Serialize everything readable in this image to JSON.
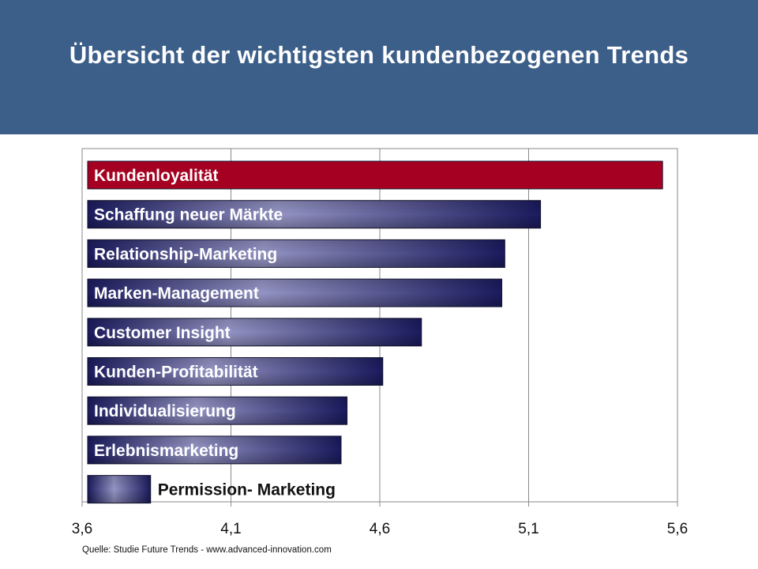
{
  "header": {
    "title": "Übersicht der wichtigsten kundenbezogenen Trends",
    "background": "#3c5f8a"
  },
  "chart_data": {
    "type": "bar",
    "orientation": "horizontal",
    "categories": [
      "Kundenloyalität",
      "Schaffung neuer Märkte",
      "Relationship-Marketing",
      "Marken-Management",
      "Customer Insight",
      "Kunden-Profitabilität",
      "Individualisierung",
      "Erlebnismarketing",
      "Permission- Marketing"
    ],
    "values": [
      5.55,
      5.14,
      5.02,
      5.01,
      4.74,
      4.61,
      4.49,
      4.47,
      3.83
    ],
    "xlim": [
      3.6,
      5.6
    ],
    "x_ticks": [
      "3,6",
      "4,1",
      "4,6",
      "5,1",
      "5,6"
    ],
    "x_tick_values": [
      3.6,
      4.1,
      4.6,
      5.1,
      5.6
    ],
    "grid": "vertical",
    "bar_labels": "inside, left-aligned",
    "highlight_color": "#a50021",
    "bar_color_dark": "#1a1a5e",
    "bar_color_light": "#9494c4"
  },
  "source": "Quelle:  Studie Future Trends  - www.advanced-innovation.com"
}
